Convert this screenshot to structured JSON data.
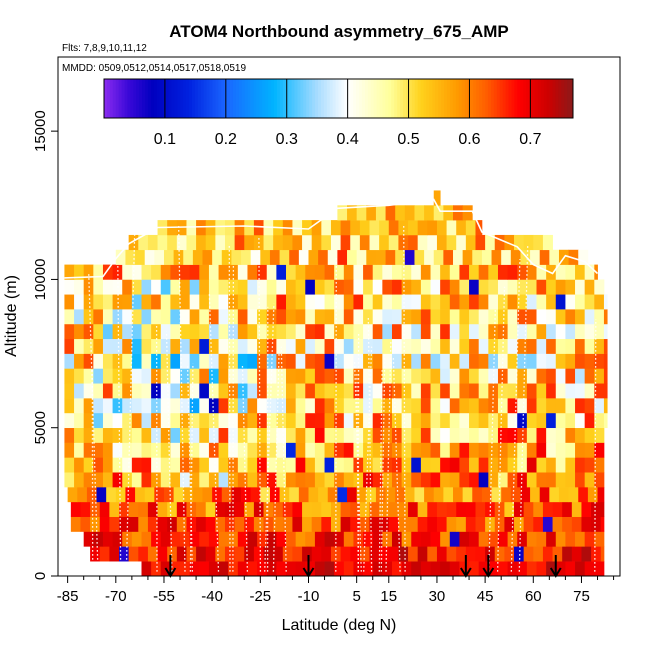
{
  "chart_data": {
    "type": "heatmap",
    "title": "ATOM4 Northbound asymmetry_675_AMP",
    "flights_label": "Flts: 7,8,9,10,11,12",
    "dates_label": "MMDD: 0509,0512,0514,0517,0518,0519",
    "xlabel": "Latitude (deg N)",
    "ylabel": "Altitude (m)",
    "xlim": [
      -88,
      87
    ],
    "ylim": [
      0,
      17500
    ],
    "x_ticks": [
      -85,
      -70,
      -55,
      -40,
      -25,
      -10,
      5,
      15,
      30,
      45,
      60,
      75
    ],
    "x_minor_ticks": [
      -80,
      -75,
      -65,
      -60,
      -50,
      -45,
      -35,
      -30,
      -20,
      -15,
      -5,
      0,
      10,
      20,
      25,
      35,
      40,
      50,
      55,
      65,
      70,
      80,
      85
    ],
    "y_ticks": [
      0,
      5000,
      10000,
      15000
    ],
    "colorbar": {
      "range": [
        0.0,
        0.77
      ],
      "ticks": [
        0.1,
        0.2,
        0.3,
        0.4,
        0.5,
        0.6,
        0.7
      ],
      "dividers": [
        0.1,
        0.2,
        0.3,
        0.4,
        0.5,
        0.6,
        0.7
      ],
      "stops": [
        {
          "v": 0.0,
          "c": "#8c2cf0"
        },
        {
          "v": 0.04,
          "c": "#3a08d8"
        },
        {
          "v": 0.08,
          "c": "#0000c0"
        },
        {
          "v": 0.14,
          "c": "#0022e0"
        },
        {
          "v": 0.2,
          "c": "#1a66ff"
        },
        {
          "v": 0.28,
          "c": "#00b4ff"
        },
        {
          "v": 0.35,
          "c": "#a8dcff"
        },
        {
          "v": 0.4,
          "c": "#ffffff"
        },
        {
          "v": 0.47,
          "c": "#ffff9a"
        },
        {
          "v": 0.52,
          "c": "#ffd21c"
        },
        {
          "v": 0.58,
          "c": "#ff9a00"
        },
        {
          "v": 0.63,
          "c": "#ff5a00"
        },
        {
          "v": 0.68,
          "c": "#ff0000"
        },
        {
          "v": 0.73,
          "c": "#cc0000"
        },
        {
          "v": 0.77,
          "c": "#8b1a1a"
        }
      ]
    },
    "profile_arrows_lat": [
      -53,
      -10,
      39,
      46,
      67
    ],
    "layers": [
      {
        "bottom": 0,
        "top": 500,
        "lat_min": -62,
        "lat_max": 82,
        "base": 0.7,
        "amp": 0.05
      },
      {
        "bottom": 500,
        "top": 1000,
        "lat_min": -78,
        "lat_max": 82,
        "base": 0.68,
        "amp": 0.07
      },
      {
        "bottom": 1000,
        "top": 1500,
        "lat_min": -80,
        "lat_max": 82,
        "base": 0.66,
        "amp": 0.08
      },
      {
        "bottom": 1500,
        "top": 2000,
        "lat_min": -84,
        "lat_max": 82,
        "base": 0.64,
        "amp": 0.09
      },
      {
        "bottom": 2000,
        "top": 2500,
        "lat_min": -84,
        "lat_max": 82,
        "base": 0.62,
        "amp": 0.1
      },
      {
        "bottom": 2500,
        "top": 3000,
        "lat_min": -85,
        "lat_max": 82,
        "base": 0.6,
        "amp": 0.11
      },
      {
        "bottom": 3000,
        "top": 3500,
        "lat_min": -86,
        "lat_max": 82,
        "base": 0.59,
        "amp": 0.12
      },
      {
        "bottom": 3500,
        "top": 4000,
        "lat_min": -86,
        "lat_max": 82,
        "base": 0.58,
        "amp": 0.13
      },
      {
        "bottom": 4000,
        "top": 4500,
        "lat_min": -86,
        "lat_max": 82,
        "base": 0.56,
        "amp": 0.14
      },
      {
        "bottom": 4500,
        "top": 5000,
        "lat_min": -86,
        "lat_max": 82,
        "base": 0.54,
        "amp": 0.14
      },
      {
        "bottom": 5000,
        "top": 5500,
        "lat_min": -86,
        "lat_max": 83,
        "base": 0.53,
        "amp": 0.14
      },
      {
        "bottom": 5500,
        "top": 6000,
        "lat_min": -86,
        "lat_max": 83,
        "base": 0.52,
        "amp": 0.15
      },
      {
        "bottom": 6000,
        "top": 6500,
        "lat_min": -86,
        "lat_max": 83,
        "base": 0.51,
        "amp": 0.15
      },
      {
        "bottom": 6500,
        "top": 7000,
        "lat_min": -86,
        "lat_max": 83,
        "base": 0.5,
        "amp": 0.15
      },
      {
        "bottom": 7000,
        "top": 7500,
        "lat_min": -86,
        "lat_max": 83,
        "base": 0.49,
        "amp": 0.16
      },
      {
        "bottom": 7500,
        "top": 8000,
        "lat_min": -86,
        "lat_max": 83,
        "base": 0.5,
        "amp": 0.16
      },
      {
        "bottom": 8000,
        "top": 8500,
        "lat_min": -86,
        "lat_max": 83,
        "base": 0.5,
        "amp": 0.16
      },
      {
        "bottom": 8500,
        "top": 9000,
        "lat_min": -86,
        "lat_max": 83,
        "base": 0.51,
        "amp": 0.16
      },
      {
        "bottom": 9000,
        "top": 9500,
        "lat_min": -86,
        "lat_max": 83,
        "base": 0.52,
        "amp": 0.15
      },
      {
        "bottom": 9500,
        "top": 10000,
        "lat_min": -86,
        "lat_max": 82,
        "base": 0.53,
        "amp": 0.14
      },
      {
        "bottom": 10000,
        "top": 10500,
        "lat_min": -86,
        "lat_max": 80,
        "base": 0.54,
        "amp": 0.13
      },
      {
        "bottom": 10500,
        "top": 11000,
        "lat_min": -70,
        "lat_max": 77,
        "base": 0.53,
        "amp": 0.13
      },
      {
        "bottom": 11000,
        "top": 11500,
        "lat_min": -66,
        "lat_max": 66,
        "base": 0.53,
        "amp": 0.12
      },
      {
        "bottom": 11500,
        "top": 12000,
        "lat_min": -57,
        "lat_max": 44,
        "base": 0.54,
        "amp": 0.1
      },
      {
        "bottom": 12000,
        "top": 12500,
        "lat_min": -1,
        "lat_max": 41,
        "base": 0.55,
        "amp": 0.07
      },
      {
        "bottom": 12500,
        "top": 13000,
        "lat_min": 29,
        "lat_max": 31,
        "base": 0.58,
        "amp": 0.03
      }
    ]
  }
}
